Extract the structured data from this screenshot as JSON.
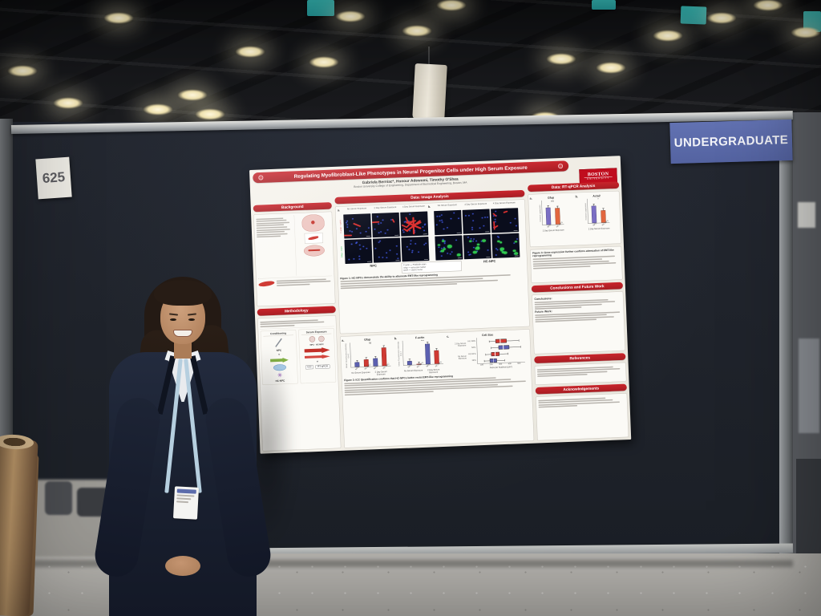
{
  "scene": {
    "board_number": "625",
    "category_sign": "UNDERGRADUATE"
  },
  "poster": {
    "title": "Regulating Myofibroblast-Like Phenotypes in Neural Progenitor Cells under High Serum Exposure",
    "authors": "Gabriela Berniac*, Honour Adewumi, Timothy O'Shea",
    "affiliation": "Boston University College of Engineering, Department of Biomedical Engineering, Boston, MA",
    "logo": {
      "line1": "BOSTON",
      "line2": "UNIVERSITY"
    },
    "panels": {
      "a": "a.",
      "b": "b.",
      "c": "c."
    },
    "sections": {
      "background": "Background",
      "methodology": "Methodology",
      "image_analysis": "Data: Image Analysis",
      "qpcr": "Data: RT-qPCR Analysis",
      "conclusions": "Conclusions and Future Work",
      "references": "References",
      "acknowledgements": "Acknowledgements"
    },
    "methodology": {
      "col1": "Conditioning",
      "col2": "Serum Exposure",
      "npc": "NPC",
      "hcnpc": "HC-NPC",
      "end1": "ICC",
      "end2": "RT-qPCR"
    },
    "microscopy": {
      "col_headers": [
        "No Serum Exposure",
        "2 Day Serum Exposure",
        "4 Day Serum Exposure"
      ],
      "row_labels": [
        "F-actin + DAPI",
        "Gfap + DAPI"
      ],
      "group_a": "NPC",
      "group_b": "HC-NPC",
      "legend": [
        "F-actin — Phalloidin stain",
        "Gfap — astrocyte marker",
        "DAPI — stains nuclei"
      ]
    },
    "figures": {
      "fig1": "Figure 1: HC-NPCs demonstrate the ability to attenuate EMT-like reprogramming",
      "fig2": "Figure 2: ICC Quantification confirms that HC-NPCs better resist EMT-like reprogramming",
      "fig3": "Figure 3: Gene expression further confirms attenuation of EMT-like reprogramming"
    },
    "conclusions": {
      "label1": "Conclusions:",
      "label2": "Future Work:"
    }
  },
  "chart_data": [
    {
      "id": "icc_gfap",
      "type": "bar",
      "title": "Gfap",
      "ylabel": "Mean Fluorescence Intensity (a.u.)",
      "categories": [
        "NPC",
        "HC-NPC",
        "NPC",
        "HC-NPC"
      ],
      "group_labels": [
        "No Serum Exposure",
        "2 Day Serum Exposure"
      ],
      "values": [
        0.6,
        0.9,
        1.0,
        2.3
      ],
      "colors": [
        "#5c60b0",
        "#cf3a33",
        "#5c60b0",
        "#cf3a33"
      ],
      "annotation": "ns",
      "ylim": [
        0,
        3
      ]
    },
    {
      "id": "icc_factin",
      "type": "bar",
      "title": "F-actin",
      "ylabel": "Mean Fluorescence Intensity (a.u.)",
      "categories": [
        "NPC",
        "HC-NPC",
        "NPC",
        "HC-NPC"
      ],
      "group_labels": [
        "No Serum Exposure",
        "2 Day Serum Exposure"
      ],
      "values": [
        0.8,
        0.15,
        3.8,
        2.5
      ],
      "colors": [
        "#5c60b0",
        "#cf3a33",
        "#5c60b0",
        "#cf3a33"
      ],
      "annotation": "***",
      "ylim": [
        0,
        4.5
      ]
    },
    {
      "id": "cell_size",
      "type": "boxplot-h",
      "title": "Cell Size",
      "xlabel": "Area per Nucleus (µm²)",
      "xticks": [
        100,
        200,
        300,
        400,
        500
      ],
      "xlim": [
        50,
        560
      ],
      "rows": [
        {
          "label": "HC-NPC",
          "group": "2 Day Serum Exposure",
          "color": "#cf3a33",
          "lo": 180,
          "q1": 250,
          "med": 300,
          "q3": 370,
          "hi": 500
        },
        {
          "label": "NPC",
          "group": "2 Day Serum Exposure",
          "color": "#5c60b0",
          "lo": 200,
          "q1": 280,
          "med": 330,
          "q3": 400,
          "hi": 520
        },
        {
          "label": "HC-NPC",
          "group": "No Serum Exposure",
          "color": "#cf3a33",
          "lo": 140,
          "q1": 200,
          "med": 240,
          "q3": 290,
          "hi": 380
        },
        {
          "label": "NPC",
          "group": "No Serum Exposure",
          "color": "#5c60b0",
          "lo": 120,
          "q1": 180,
          "med": 220,
          "q3": 260,
          "hi": 340
        }
      ]
    },
    {
      "id": "qpcr_gfap",
      "type": "bar",
      "title": "Gfap",
      "ylabel": "Relative Expression",
      "categories": [
        "NPC",
        "HC-NPC"
      ],
      "group_labels": [
        "2 Day Serum Exposure"
      ],
      "values": [
        1.0,
        0.95
      ],
      "colors": [
        "#7b6fc4",
        "#e2663f"
      ],
      "annotation": "ns",
      "ylim": [
        0,
        1.4
      ]
    },
    {
      "id": "qpcr_acta2",
      "type": "bar",
      "title": "Acta2",
      "ylabel": "Relative Expression",
      "categories": [
        "NPC",
        "HC-NPC"
      ],
      "group_labels": [
        "2 Day Serum Exposure"
      ],
      "values": [
        1.0,
        0.72
      ],
      "colors": [
        "#7b6fc4",
        "#e2663f"
      ],
      "annotation": "*",
      "ylim": [
        0,
        1.4
      ]
    }
  ]
}
